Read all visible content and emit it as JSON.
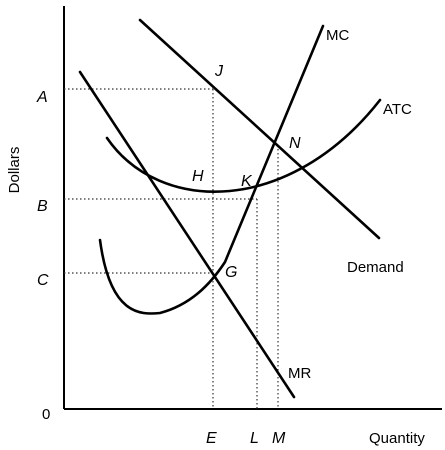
{
  "axes": {
    "ylabel": "Dollars",
    "xlabel": "Quantity",
    "origin": "0",
    "y_ticks": [
      "A",
      "B",
      "C"
    ],
    "x_ticks": [
      "E",
      "L",
      "M"
    ]
  },
  "curves": {
    "mc": "MC",
    "atc": "ATC",
    "demand": "Demand",
    "mr": "MR"
  },
  "points": {
    "j": "J",
    "n": "N",
    "h": "H",
    "k": "K",
    "g": "G"
  }
}
